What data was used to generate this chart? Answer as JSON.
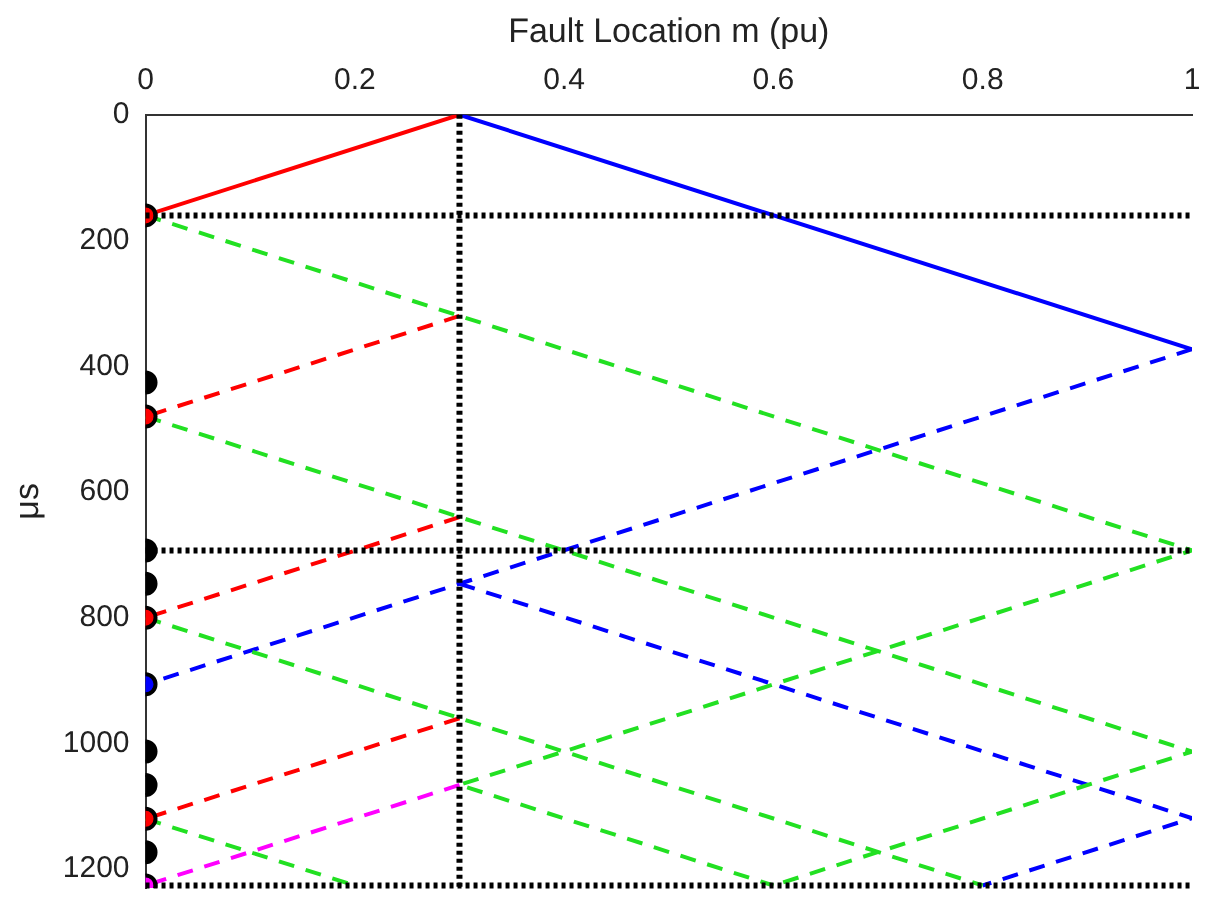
{
  "chart_data": {
    "type": "line",
    "xlabel": "Fault Location m (pu)",
    "ylabel": "μs",
    "xlim": [
      0,
      1
    ],
    "xticks": [
      0,
      0.2,
      0.4,
      0.6,
      0.8,
      1
    ],
    "ylim": [
      1230,
      0
    ],
    "yticks": [
      0,
      200,
      400,
      600,
      800,
      1000,
      1200
    ],
    "grid": false,
    "legend": false,
    "marker": "none",
    "series": [
      {
        "color": "#ff0000",
        "line_style": "solid",
        "x": [
          0.3,
          0
        ],
        "values": [
          0,
          160
        ]
      },
      {
        "color": "#0000ff",
        "line_style": "solid",
        "x": [
          0.3,
          1
        ],
        "values": [
          0,
          373
        ]
      },
      {
        "color": "#22e022",
        "line_style": "dashed",
        "x": [
          0,
          1,
          0.3,
          0.6
        ],
        "values": [
          160,
          693,
          1066,
          1226
        ]
      },
      {
        "color": "#22e022",
        "line_style": "dashed",
        "x": [
          0,
          1,
          0.6
        ],
        "values": [
          480,
          1013,
          1226
        ]
      },
      {
        "color": "#22e022",
        "line_style": "dashed",
        "x": [
          0,
          0.8
        ],
        "values": [
          800,
          1226
        ]
      },
      {
        "color": "#22e022",
        "line_style": "dashed",
        "x": [
          0,
          0.2
        ],
        "values": [
          1120,
          1226
        ]
      },
      {
        "color": "#ff0000",
        "line_style": "dashed",
        "x": [
          0.3,
          0
        ],
        "values": [
          320,
          480
        ]
      },
      {
        "color": "#ff0000",
        "line_style": "dashed",
        "x": [
          0.3,
          0
        ],
        "values": [
          640,
          800
        ]
      },
      {
        "color": "#ff0000",
        "line_style": "dashed",
        "x": [
          0.3,
          0
        ],
        "values": [
          960,
          1120
        ]
      },
      {
        "color": "#0000ff",
        "line_style": "dashed",
        "x": [
          1,
          0.3,
          0
        ],
        "values": [
          373,
          746,
          906
        ]
      },
      {
        "color": "#0000ff",
        "line_style": "dashed",
        "x": [
          0.3,
          1,
          0.8
        ],
        "values": [
          746,
          1119,
          1226
        ]
      },
      {
        "color": "#ff00ff",
        "line_style": "dashed",
        "x": [
          0.3,
          0
        ],
        "values": [
          1066,
          1226
        ]
      },
      {
        "type": "scatter",
        "marker": "circle",
        "color": "#ff0000",
        "x": [
          0,
          0,
          0,
          0
        ],
        "values": [
          160,
          480,
          800,
          1120
        ]
      },
      {
        "type": "scatter",
        "marker": "circle",
        "color": "#0000ff",
        "x": [
          0
        ],
        "values": [
          906
        ]
      },
      {
        "type": "scatter",
        "marker": "circle",
        "color": "#ff00ff",
        "x": [
          0
        ],
        "values": [
          1226
        ]
      },
      {
        "type": "scatter",
        "marker": "circle",
        "color": "#000000",
        "x": [
          0,
          0,
          0,
          0,
          0,
          0
        ],
        "values": [
          426,
          693,
          746,
          1013,
          1066,
          1173
        ]
      }
    ],
    "ref_lines": [
      {
        "axis": "x",
        "value": 0.3,
        "color": "#000000",
        "line_style": "dotted"
      },
      {
        "axis": "y",
        "value": 160,
        "color": "#000000",
        "line_style": "dotted"
      },
      {
        "axis": "y",
        "value": 693,
        "color": "#000000",
        "line_style": "dotted"
      },
      {
        "axis": "y",
        "value": 1226,
        "color": "#000000",
        "line_style": "dotted"
      }
    ]
  }
}
